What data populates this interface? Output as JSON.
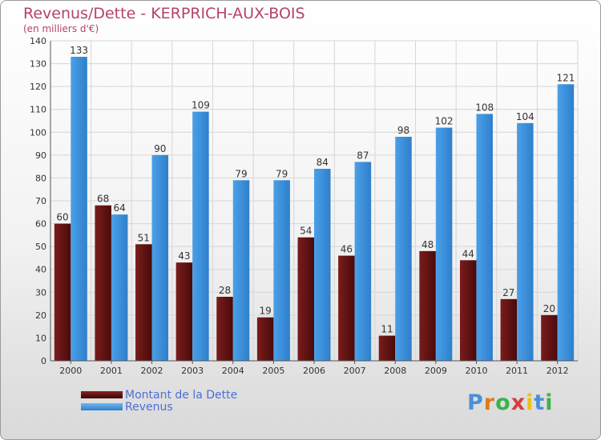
{
  "chart_data": {
    "type": "bar",
    "title": "Revenus/Dette - KERPRICH-AUX-BOIS",
    "subtitle": "(en milliers d'€)",
    "categories": [
      "2000",
      "2001",
      "2002",
      "2003",
      "2004",
      "2005",
      "2006",
      "2007",
      "2008",
      "2009",
      "2010",
      "2011",
      "2012"
    ],
    "series": [
      {
        "name": "Montant de la Dette",
        "color": "#7a1c1c",
        "values": [
          60,
          68,
          51,
          43,
          28,
          19,
          54,
          46,
          11,
          48,
          44,
          27,
          20
        ]
      },
      {
        "name": "Revenus",
        "color": "#4aa0e8",
        "values": [
          133,
          64,
          90,
          109,
          79,
          79,
          84,
          87,
          98,
          102,
          108,
          104,
          121
        ]
      }
    ],
    "ylim": [
      0,
      140
    ],
    "yticks": [
      0,
      10,
      20,
      30,
      40,
      50,
      60,
      70,
      80,
      90,
      100,
      110,
      120,
      130,
      140
    ],
    "grid": true,
    "legend_position": "bottom-left"
  },
  "logo": {
    "letters": [
      "P",
      "r",
      "o",
      "x",
      "i",
      "t",
      "i"
    ],
    "colors": [
      "#4a90d9",
      "#e07b1a",
      "#3bb34a",
      "#d43f3a",
      "#e8c21a",
      "#4a90d9",
      "#3bb34a"
    ]
  }
}
